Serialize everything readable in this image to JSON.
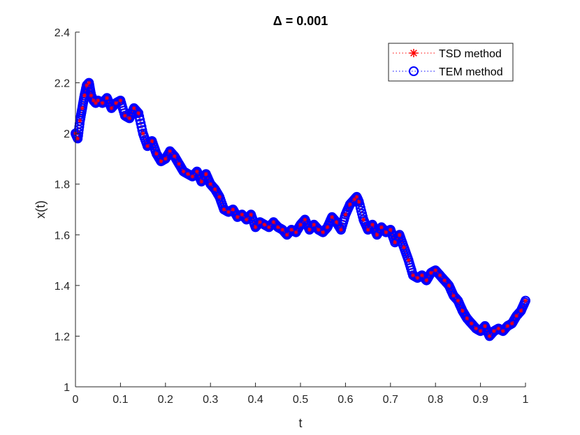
{
  "chart_data": {
    "type": "line",
    "title": "Δ = 0.001",
    "xlabel": "t",
    "ylabel": "x(t)",
    "xlim": [
      0,
      1
    ],
    "ylim": [
      1,
      2.4
    ],
    "xticks": [
      "0",
      "0.1",
      "0.2",
      "0.3",
      "0.4",
      "0.5",
      "0.6",
      "0.7",
      "0.8",
      "0.9",
      "1"
    ],
    "yticks": [
      "1",
      "1.2",
      "1.4",
      "1.6",
      "1.8",
      "2",
      "2.2",
      "2.4"
    ],
    "grid": false,
    "legend_position": "top-right",
    "series": [
      {
        "name": "TSD method",
        "color": "#ff0000",
        "marker": "asterisk",
        "line_style": "dotted",
        "x": [
          0,
          0.005,
          0.01,
          0.015,
          0.02,
          0.025,
          0.03,
          0.035,
          0.04,
          0.045,
          0.05,
          0.06,
          0.07,
          0.08,
          0.09,
          0.1,
          0.11,
          0.12,
          0.13,
          0.14,
          0.15,
          0.16,
          0.17,
          0.18,
          0.19,
          0.2,
          0.21,
          0.22,
          0.23,
          0.24,
          0.25,
          0.26,
          0.27,
          0.28,
          0.29,
          0.3,
          0.31,
          0.32,
          0.33,
          0.34,
          0.35,
          0.36,
          0.37,
          0.38,
          0.39,
          0.4,
          0.41,
          0.42,
          0.43,
          0.44,
          0.45,
          0.46,
          0.47,
          0.48,
          0.49,
          0.5,
          0.51,
          0.52,
          0.53,
          0.54,
          0.55,
          0.56,
          0.57,
          0.58,
          0.59,
          0.6,
          0.61,
          0.62,
          0.625,
          0.63,
          0.64,
          0.65,
          0.66,
          0.67,
          0.68,
          0.69,
          0.7,
          0.71,
          0.72,
          0.73,
          0.74,
          0.75,
          0.76,
          0.77,
          0.78,
          0.79,
          0.8,
          0.81,
          0.82,
          0.83,
          0.84,
          0.85,
          0.86,
          0.87,
          0.88,
          0.89,
          0.9,
          0.91,
          0.92,
          0.93,
          0.94,
          0.95,
          0.96,
          0.97,
          0.98,
          0.99,
          1.0
        ],
        "y": [
          2.0,
          1.98,
          2.05,
          2.1,
          2.15,
          2.19,
          2.2,
          2.15,
          2.13,
          2.12,
          2.13,
          2.12,
          2.14,
          2.1,
          2.12,
          2.13,
          2.07,
          2.06,
          2.1,
          2.08,
          2.0,
          1.95,
          1.97,
          1.92,
          1.89,
          1.9,
          1.93,
          1.91,
          1.88,
          1.85,
          1.84,
          1.83,
          1.85,
          1.81,
          1.84,
          1.8,
          1.78,
          1.75,
          1.7,
          1.69,
          1.7,
          1.67,
          1.68,
          1.66,
          1.68,
          1.63,
          1.65,
          1.64,
          1.63,
          1.65,
          1.63,
          1.62,
          1.6,
          1.62,
          1.61,
          1.64,
          1.66,
          1.62,
          1.64,
          1.62,
          1.61,
          1.63,
          1.67,
          1.65,
          1.62,
          1.68,
          1.72,
          1.74,
          1.75,
          1.73,
          1.66,
          1.62,
          1.64,
          1.6,
          1.63,
          1.61,
          1.62,
          1.57,
          1.6,
          1.55,
          1.5,
          1.44,
          1.43,
          1.44,
          1.42,
          1.45,
          1.46,
          1.44,
          1.42,
          1.4,
          1.36,
          1.34,
          1.3,
          1.27,
          1.25,
          1.23,
          1.22,
          1.24,
          1.2,
          1.22,
          1.23,
          1.22,
          1.24,
          1.25,
          1.28,
          1.3,
          1.34
        ]
      },
      {
        "name": "TEM method",
        "color": "#0000ff",
        "marker": "circle",
        "line_style": "dotted",
        "x": [
          0,
          0.005,
          0.01,
          0.015,
          0.02,
          0.025,
          0.03,
          0.035,
          0.04,
          0.045,
          0.05,
          0.06,
          0.07,
          0.08,
          0.09,
          0.1,
          0.11,
          0.12,
          0.13,
          0.14,
          0.15,
          0.16,
          0.17,
          0.18,
          0.19,
          0.2,
          0.21,
          0.22,
          0.23,
          0.24,
          0.25,
          0.26,
          0.27,
          0.28,
          0.29,
          0.3,
          0.31,
          0.32,
          0.33,
          0.34,
          0.35,
          0.36,
          0.37,
          0.38,
          0.39,
          0.4,
          0.41,
          0.42,
          0.43,
          0.44,
          0.45,
          0.46,
          0.47,
          0.48,
          0.49,
          0.5,
          0.51,
          0.52,
          0.53,
          0.54,
          0.55,
          0.56,
          0.57,
          0.58,
          0.59,
          0.6,
          0.61,
          0.62,
          0.625,
          0.63,
          0.64,
          0.65,
          0.66,
          0.67,
          0.68,
          0.69,
          0.7,
          0.71,
          0.72,
          0.73,
          0.74,
          0.75,
          0.76,
          0.77,
          0.78,
          0.79,
          0.8,
          0.81,
          0.82,
          0.83,
          0.84,
          0.85,
          0.86,
          0.87,
          0.88,
          0.89,
          0.9,
          0.91,
          0.92,
          0.93,
          0.94,
          0.95,
          0.96,
          0.97,
          0.98,
          0.99,
          1.0
        ],
        "y": [
          2.0,
          1.98,
          2.05,
          2.1,
          2.15,
          2.19,
          2.2,
          2.15,
          2.13,
          2.12,
          2.13,
          2.12,
          2.14,
          2.1,
          2.12,
          2.13,
          2.07,
          2.06,
          2.1,
          2.08,
          2.0,
          1.95,
          1.97,
          1.92,
          1.89,
          1.9,
          1.93,
          1.91,
          1.88,
          1.85,
          1.84,
          1.83,
          1.85,
          1.81,
          1.84,
          1.8,
          1.78,
          1.75,
          1.7,
          1.69,
          1.7,
          1.67,
          1.68,
          1.66,
          1.68,
          1.63,
          1.65,
          1.64,
          1.63,
          1.65,
          1.63,
          1.62,
          1.6,
          1.62,
          1.61,
          1.64,
          1.66,
          1.62,
          1.64,
          1.62,
          1.61,
          1.63,
          1.67,
          1.65,
          1.62,
          1.68,
          1.72,
          1.74,
          1.75,
          1.73,
          1.66,
          1.62,
          1.64,
          1.6,
          1.63,
          1.61,
          1.62,
          1.57,
          1.6,
          1.55,
          1.5,
          1.44,
          1.43,
          1.44,
          1.42,
          1.45,
          1.46,
          1.44,
          1.42,
          1.4,
          1.36,
          1.34,
          1.3,
          1.27,
          1.25,
          1.23,
          1.22,
          1.24,
          1.2,
          1.22,
          1.23,
          1.22,
          1.24,
          1.25,
          1.28,
          1.3,
          1.34
        ]
      }
    ]
  }
}
